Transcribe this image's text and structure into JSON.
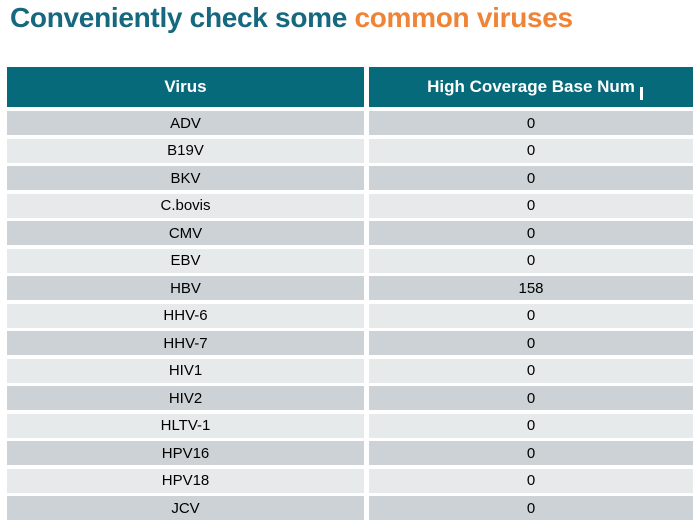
{
  "title": {
    "prefix": "Conveniently check some ",
    "highlight": "common viruses"
  },
  "colors": {
    "title_teal": "#15687D",
    "title_orange": "#EF8336",
    "header_bg": "#066A7A",
    "header_text": "#FFFFFF",
    "row_dark": "#CCD2D5",
    "row_light": "#E7EAEB",
    "cell_text": "#000000"
  },
  "table": {
    "columns": [
      "Virus",
      "High Coverage Base Num"
    ],
    "rows": [
      {
        "virus": "ADV",
        "value": "0"
      },
      {
        "virus": "B19V",
        "value": "0"
      },
      {
        "virus": "BKV",
        "value": "0"
      },
      {
        "virus": "C.bovis",
        "value": "0"
      },
      {
        "virus": "CMV",
        "value": "0"
      },
      {
        "virus": "EBV",
        "value": "0"
      },
      {
        "virus": "HBV",
        "value": "158"
      },
      {
        "virus": "HHV-6",
        "value": "0"
      },
      {
        "virus": "HHV-7",
        "value": "0"
      },
      {
        "virus": "HIV1",
        "value": "0"
      },
      {
        "virus": "HIV2",
        "value": "0"
      },
      {
        "virus": "HLTV-1",
        "value": "0"
      },
      {
        "virus": "HPV16",
        "value": "0"
      },
      {
        "virus": "HPV18",
        "value": "0"
      },
      {
        "virus": "JCV",
        "value": "0"
      }
    ]
  }
}
